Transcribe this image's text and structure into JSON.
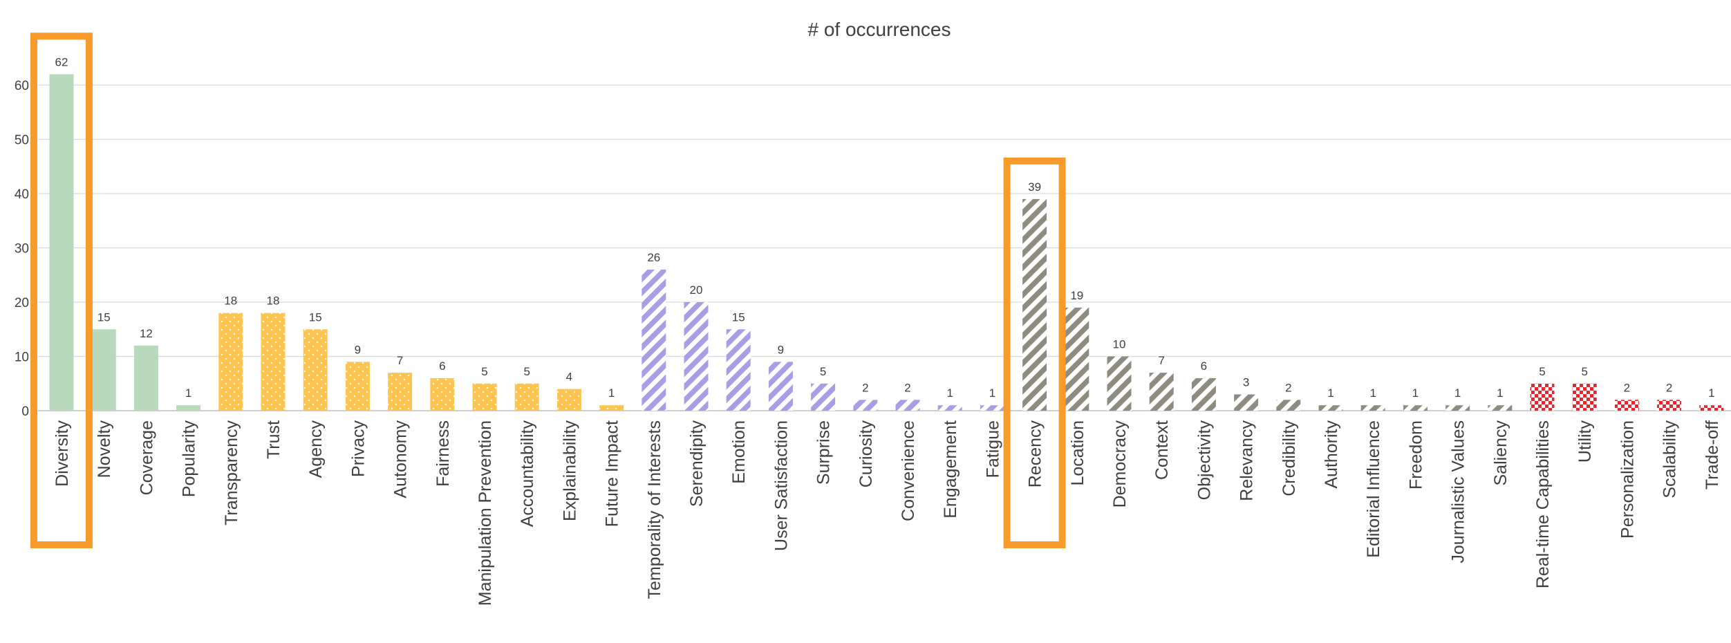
{
  "chart_data": {
    "type": "bar",
    "title": "# of occurrences",
    "xlabel": "",
    "ylabel": "",
    "ylim": [
      0,
      65
    ],
    "yticks": [
      0,
      10,
      20,
      30,
      40,
      50,
      60
    ],
    "grid": true,
    "categories": [
      "Diversity",
      "Novelty",
      "Coverage",
      "Popularity",
      "Transparency",
      "Trust",
      "Agency",
      "Privacy",
      "Autonomy",
      "Fairness",
      "Manipulation Prevention",
      "Accountability",
      "Explainability",
      "Future Impact",
      "Temporality of Interests",
      "Serendipity",
      "Emotion",
      "User Satisfaction",
      "Surprise",
      "Curiosity",
      "Convenience",
      "Engagement",
      "Fatigue",
      "Recency",
      "Location",
      "Democracy",
      "Context",
      "Objectivity",
      "Relevancy",
      "Credibility",
      "Authority",
      "Editorial Influence",
      "Freedom",
      "Journalistic Values",
      "Saliency",
      "Real-time Capabilities",
      "Utility",
      "Personalization",
      "Scalability",
      "Trade-off"
    ],
    "values": [
      62,
      15,
      12,
      1,
      18,
      18,
      15,
      9,
      7,
      6,
      5,
      5,
      4,
      1,
      26,
      20,
      15,
      9,
      5,
      2,
      2,
      1,
      1,
      39,
      19,
      10,
      7,
      6,
      3,
      2,
      1,
      1,
      1,
      1,
      1,
      5,
      5,
      2,
      2,
      1
    ],
    "groups": [
      {
        "color": "#b9d9bc",
        "pattern": "solid",
        "start": 0,
        "end": 3
      },
      {
        "color": "#fdc54f",
        "pattern": "dots",
        "start": 4,
        "end": 13
      },
      {
        "color": "#ab9ce6",
        "pattern": "diagonal-stripes",
        "start": 14,
        "end": 22
      },
      {
        "color": "#8e8c80",
        "pattern": "diagonal-stripes",
        "start": 23,
        "end": 34
      },
      {
        "color": "#e8262e",
        "pattern": "checkerboard",
        "start": 35,
        "end": 39
      }
    ],
    "highlights": [
      {
        "category": "Diversity",
        "color": "#f99a2b"
      },
      {
        "category": "Recency",
        "color": "#f99a2b"
      }
    ]
  }
}
